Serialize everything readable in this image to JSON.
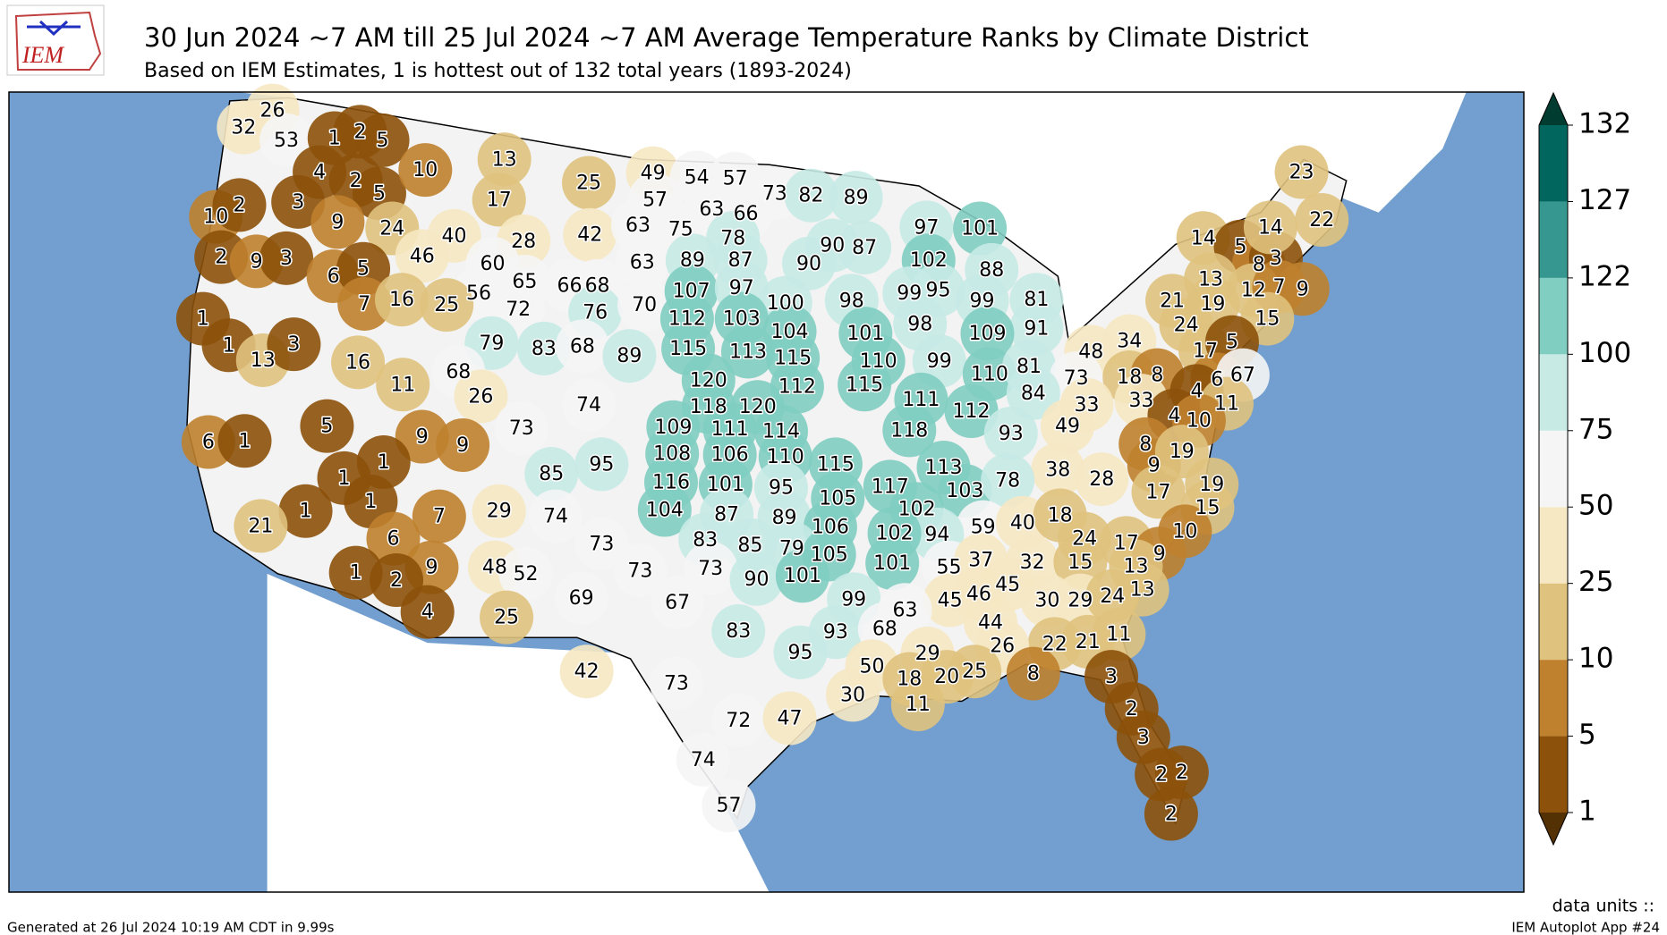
{
  "header": {
    "logo": "IEM",
    "title": "30 Jun 2024 ~7 AM till 25 Jul 2024 ~7 AM Average Temperature Ranks by Climate District",
    "subtitle": "Based on IEM Estimates, 1 is hottest out of 132 total years (1893-2024)"
  },
  "colorbar": {
    "ticks": [
      1,
      5,
      10,
      25,
      50,
      75,
      100,
      122,
      127,
      132
    ],
    "colors": [
      "#8c510a",
      "#bf812d",
      "#dfc27d",
      "#f6e8c3",
      "#f5f5f5",
      "#c7eae5",
      "#80cdc1",
      "#35978f",
      "#01665e"
    ],
    "under_color": "#543005",
    "over_color": "#003c30"
  },
  "district_ranks": {
    "values": [
      26,
      32,
      53,
      1,
      2,
      5,
      4,
      2,
      5,
      10,
      13,
      17,
      25,
      49,
      54,
      57,
      57,
      63,
      66,
      73,
      82,
      89,
      10,
      2,
      3,
      9,
      24,
      40,
      28,
      42,
      63,
      75,
      78,
      2,
      9,
      3,
      6,
      5,
      46,
      60,
      63,
      89,
      87,
      90,
      90,
      87,
      97,
      101,
      102,
      88,
      14,
      5,
      8,
      3,
      14,
      23,
      22,
      56,
      65,
      72,
      66,
      68,
      76,
      70,
      107,
      97,
      100,
      98,
      99,
      95,
      99,
      81,
      13,
      12,
      7,
      9,
      19,
      21,
      1,
      7,
      16,
      25,
      112,
      103,
      98,
      91,
      15,
      24,
      1,
      13,
      3,
      16,
      79,
      83,
      68,
      89,
      115,
      113,
      104,
      115,
      101,
      110,
      99,
      109,
      48,
      34,
      17,
      5,
      110,
      81,
      73,
      18,
      8,
      6,
      67,
      68,
      11,
      26,
      120,
      112,
      115,
      111,
      112,
      84,
      33,
      33,
      4,
      11,
      4,
      10,
      118,
      120,
      74,
      73,
      5,
      6,
      1,
      9,
      9,
      109,
      111,
      114,
      118,
      93,
      49,
      8,
      108,
      106,
      110,
      115,
      1,
      85,
      95,
      113,
      38,
      28,
      9,
      19,
      1,
      116,
      101,
      95,
      117,
      103,
      78,
      17,
      19,
      105,
      15,
      1,
      1,
      7,
      29,
      74,
      104,
      87,
      89,
      102,
      59,
      40,
      18,
      21,
      106,
      94,
      102,
      10,
      6,
      73,
      83,
      85,
      79,
      24,
      17,
      9,
      105,
      55,
      37,
      32,
      15,
      13,
      9,
      48,
      52,
      1,
      2,
      73,
      73,
      90,
      101,
      101,
      13,
      46,
      45,
      30,
      29,
      24,
      99,
      45,
      69,
      67,
      63,
      4,
      25,
      44,
      11,
      83,
      95,
      93,
      68,
      22,
      21,
      26,
      29,
      3,
      8,
      42,
      73,
      50,
      18,
      20,
      25,
      30,
      11,
      2,
      72,
      47,
      3,
      74,
      2,
      2,
      57,
      2
    ]
  },
  "footer": {
    "units": "data units ::",
    "generated": "Generated at 26 Jul 2024 10:19 AM CDT in 9.99s",
    "app": "IEM Autoplot App #24"
  }
}
